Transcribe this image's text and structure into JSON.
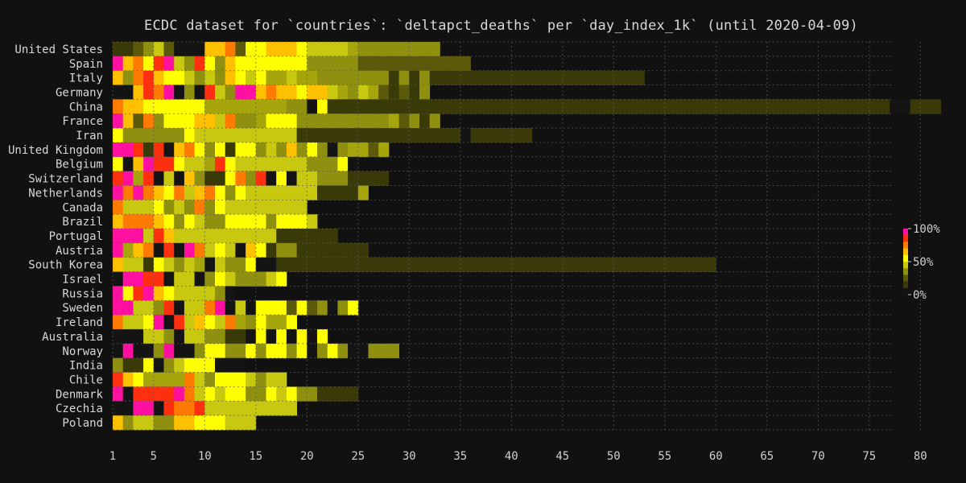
{
  "chart_data": {
    "type": "heatmap",
    "title": "ECDC dataset for `countries`: `deltapct_deaths` per `day_index_1k` (until 2020-04-09)",
    "xlabel": "",
    "ylabel": "",
    "xlim": [
      1,
      80
    ],
    "x_ticks": [
      1,
      5,
      10,
      15,
      20,
      25,
      30,
      35,
      40,
      45,
      50,
      55,
      60,
      65,
      70,
      75,
      80
    ],
    "grid": true,
    "colorbar": {
      "ticks": [
        "100%",
        "50%",
        "0%"
      ],
      "colors": [
        "#ff10a0",
        "#ff3010",
        "#ff7a00",
        "#ffc000",
        "#ffff00",
        "#c8c810",
        "#8f8f10",
        "#5a5a0a",
        "#3a3a08",
        "#141414"
      ]
    },
    "palette": [
      "#141414",
      "#3a3a08",
      "#5a5a0a",
      "#8f8f10",
      "#a6a60c",
      "#c8c810",
      "#ffff00",
      "#ffc000",
      "#ff7a00",
      "#ff3010",
      "#ff10a0"
    ],
    "value_scale_note": "",
    "rows": [
      {
        "country": "United States",
        "cells": "11235200077826677765555433333333"
      },
      {
        "country": "Spain",
        "cells": "A7869A53963766666663333322222222222"
      },
      {
        "country": "Italy",
        "cells": "7389766535376564454433333331313111111111111111111111"
      },
      {
        "country": "Germany",
        "cells": "00798A030953AE78776775435421213"
      },
      {
        "country": "China",
        "cells": "877666666444444443306111111111111111111111111111111111111111111111111111111100111"
      },
      {
        "country": "France",
        "cells": "A7283666775833466633333333342313"
      },
      {
        "country": "Iran",
        "cells": "63333336555555555511111111111111110111111"
      },
      {
        "country": "United Kingdom",
        "cells": "AA9190786361663537363034424"
      },
      {
        "country": "Belgium",
        "cells": "607A99655496555555533360"
      },
      {
        "country": "Switzerland",
        "cells": "9A4905073116839060553331111"
      },
      {
        "country": "Netherlands",
        "cells": "A8A8768578636555555511114"
      },
      {
        "country": "Canada",
        "cells": "8555635383655555555"
      },
      {
        "country": "Brazil",
        "cells": "78887636533666636665"
      },
      {
        "country": "Portugal",
        "cells": "AAA5975555555555111111"
      },
      {
        "country": "Austria",
        "cells": "A478090A85650761331111111"
      },
      {
        "country": "South Korea",
        "cells": "75516535405336001111111111111111111111111111111111111111111"
      },
      {
        "country": "Israel",
        "cells": "0BA99055036533356"
      },
      {
        "country": "Russia",
        "cells": "A69A76555530"
      },
      {
        "country": "Sweden",
        "cells": "AA55390558A0506662623036"
      },
      {
        "country": "Ireland",
        "cells": "8556A0957658436446"
      },
      {
        "country": "Australia",
        "cells": "000553055331106060606"
      },
      {
        "country": "Norway",
        "cells": "0A003A0036633636636036300333"
      },
      {
        "country": "India",
        "cells": "3116035666000"
      },
      {
        "country": "Chile",
        "cells": "97644448536665355"
      },
      {
        "country": "Denmark",
        "cells": "A09999A85656633656331111"
      },
      {
        "country": "Czechia",
        "cells": "00AA09889555555555"
      },
      {
        "country": "Poland",
        "cells": "73553377666555"
      }
    ]
  }
}
